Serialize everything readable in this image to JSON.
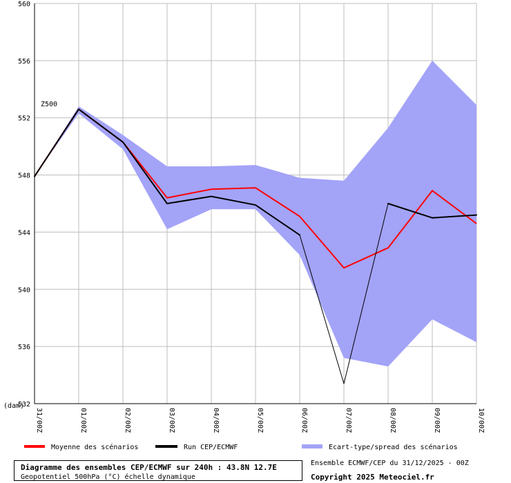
{
  "chart_data": {
    "type": "line",
    "title": "Diagramme des ensembles CEP/ECMWF sur 240h : 43.8N 12.7E",
    "subtitle": "Geopotentiel 500hPa (°C) échelle dynamique",
    "ylabel": "(dam)",
    "series_label": "Z500",
    "ylim": [
      532,
      560
    ],
    "yticks": [
      532,
      536,
      540,
      544,
      548,
      552,
      556,
      560
    ],
    "categories": [
      "31/00Z",
      "01/00Z",
      "02/00Z",
      "03/00Z",
      "04/00Z",
      "05/00Z",
      "06/00Z",
      "07/00Z",
      "08/00Z",
      "09/00Z",
      "10/00Z"
    ],
    "grid": true,
    "legend_position": "bottom",
    "series": [
      {
        "name": "Moyenne des scénarios",
        "color": "#ff0000",
        "values": [
          547.9,
          552.6,
          550.3,
          546.4,
          547.0,
          547.1,
          545.1,
          541.5,
          542.9,
          546.9,
          544.6
        ]
      },
      {
        "name": "Run CEP/ECMWF",
        "color": "#000000",
        "values": [
          547.9,
          552.6,
          550.3,
          546.0,
          546.5,
          545.9,
          543.8,
          533.4,
          546.0,
          545.0,
          545.2
        ]
      }
    ],
    "spread": {
      "name": "Ecart-type/spread des scénarios",
      "color": "#a3a3f8",
      "upper": [
        547.9,
        552.8,
        550.8,
        548.6,
        548.6,
        548.7,
        547.8,
        547.6,
        551.3,
        556.0,
        552.9
      ],
      "lower": [
        547.9,
        552.3,
        549.8,
        544.2,
        545.6,
        545.6,
        542.4,
        535.2,
        534.6,
        537.9,
        536.3
      ]
    }
  },
  "footer": {
    "run_info": "Ensemble ECMWF/CEP du 31/12/2025 - 00Z",
    "copyright": "Copyright 2025 Meteociel.fr"
  }
}
